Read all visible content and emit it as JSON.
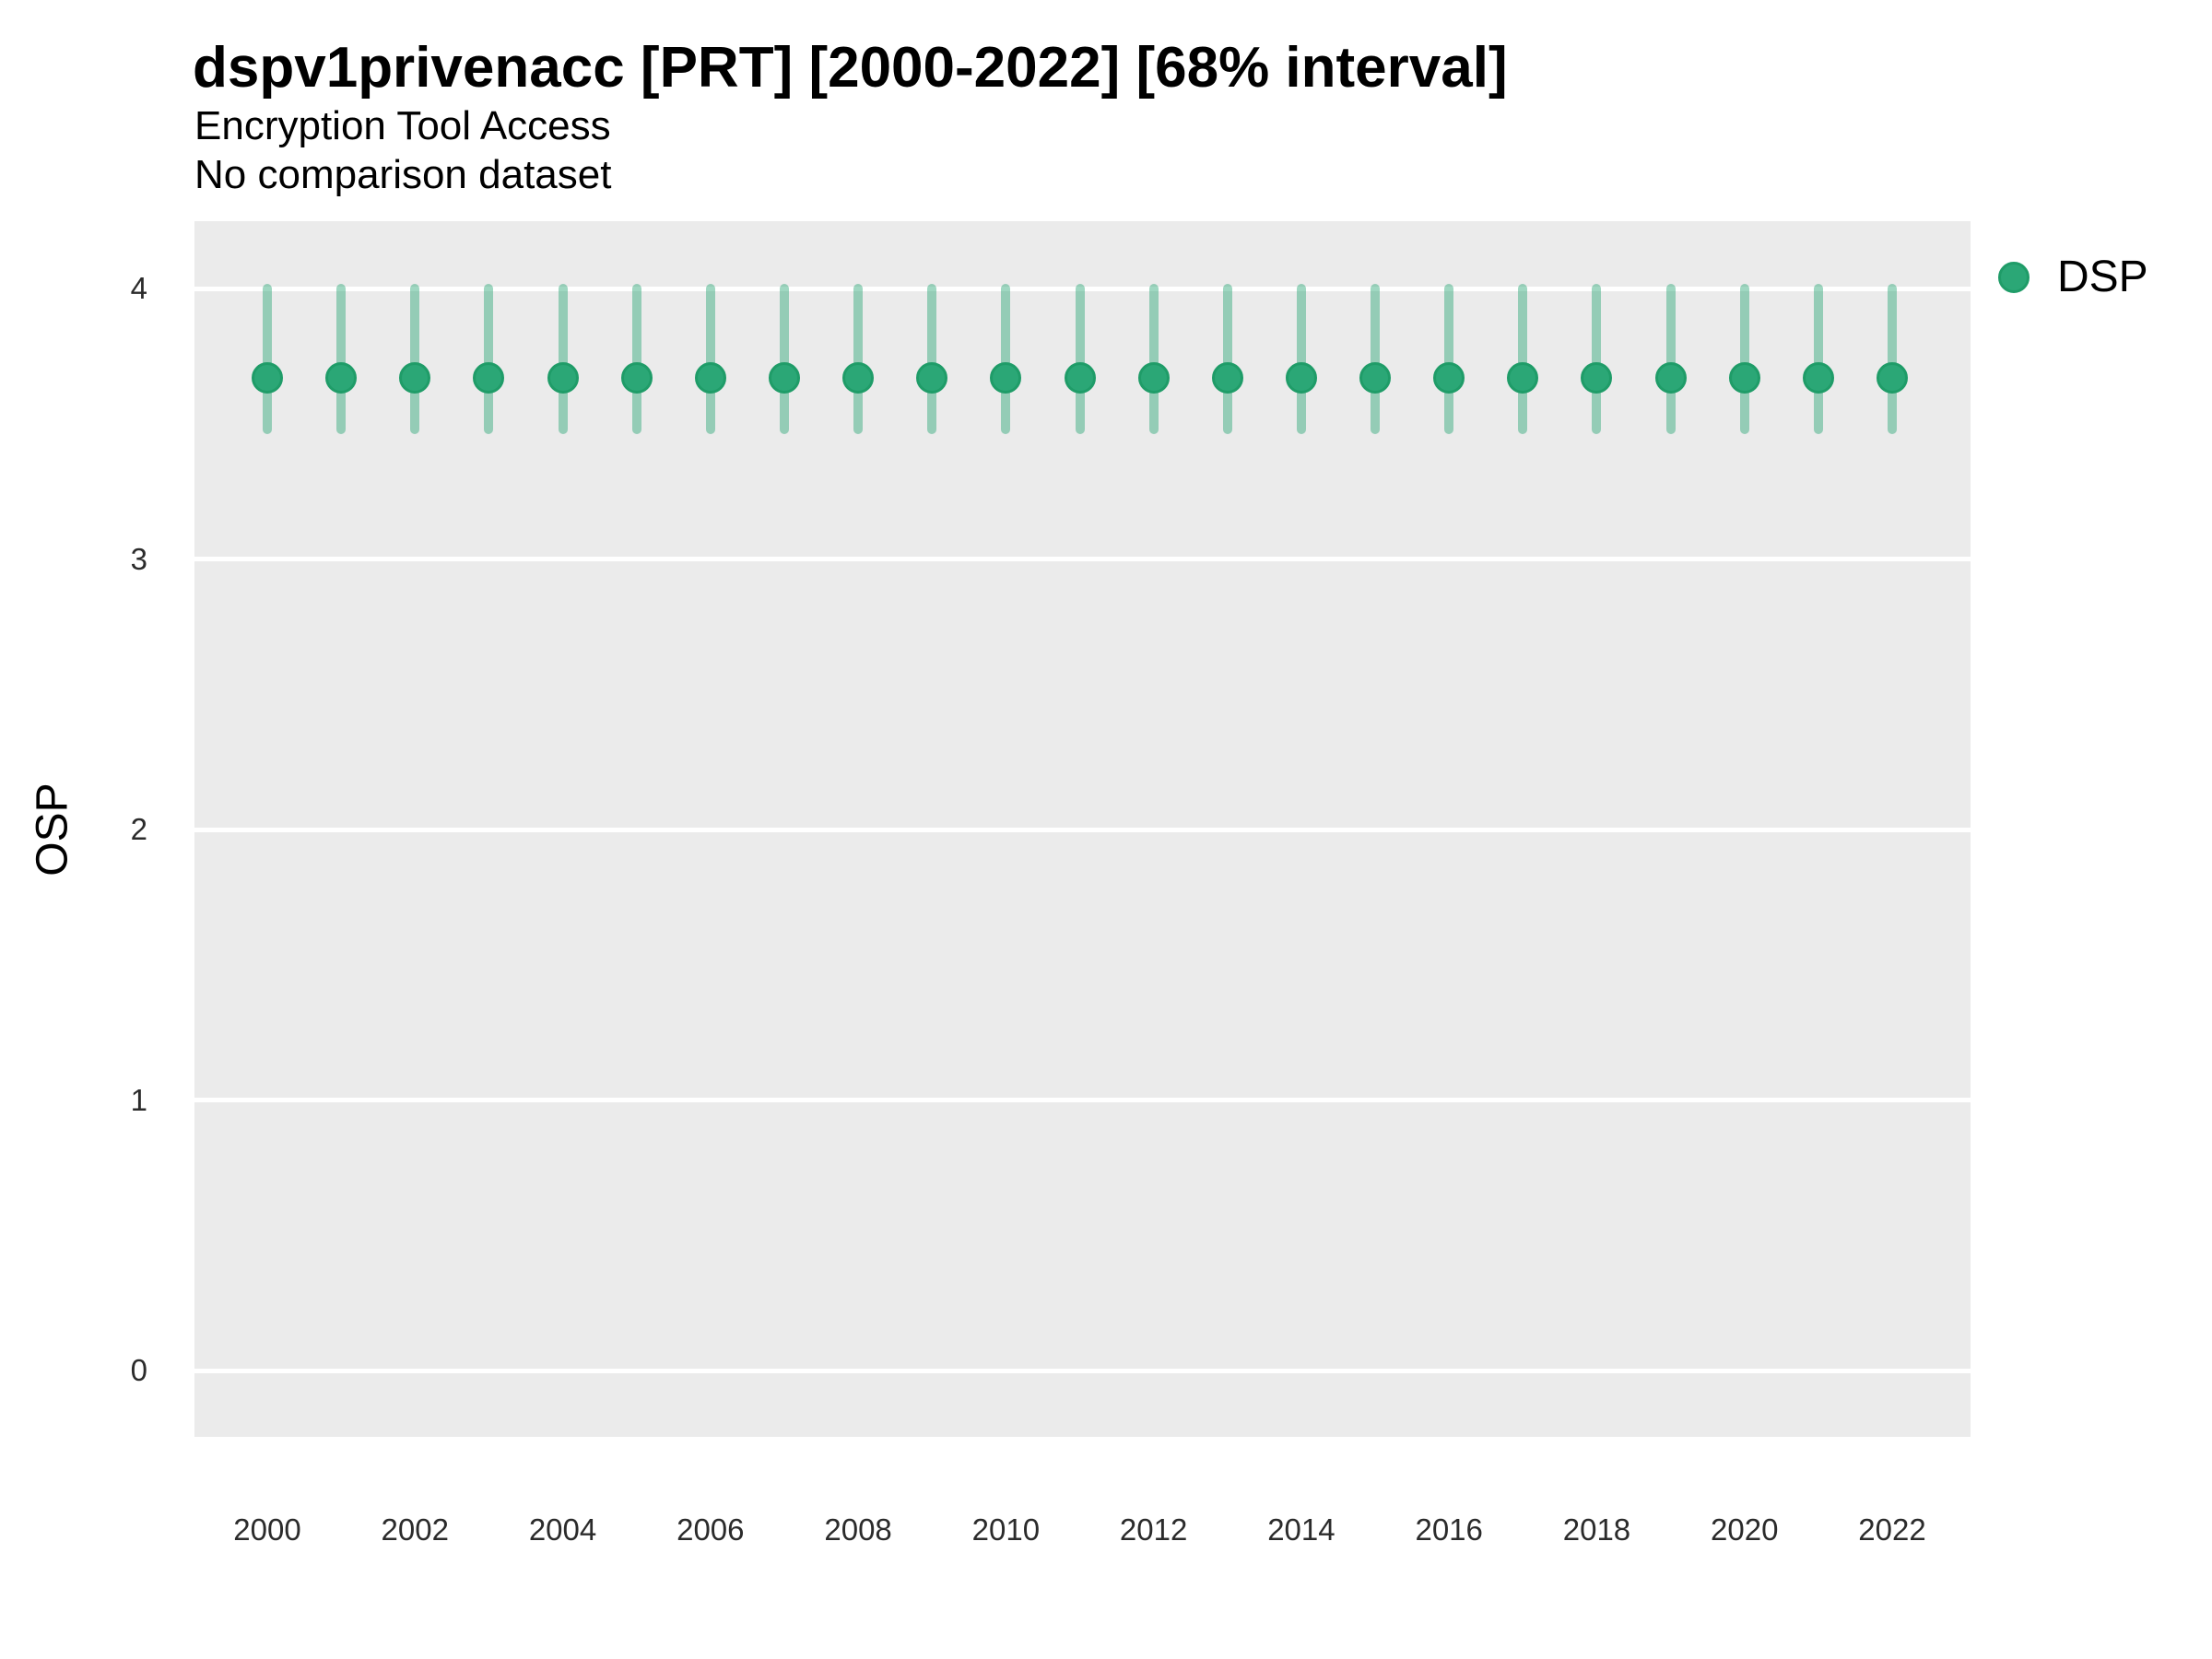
{
  "header": {
    "title": "dspv1privenacc [PRT] [2000-2022] [68% interval]",
    "subtitle": "Encryption Tool Access",
    "note": "No comparison dataset"
  },
  "legend": {
    "items": [
      {
        "label": "DSP",
        "marker": "circle-icon",
        "color": "#2BA776"
      }
    ],
    "position": "right"
  },
  "axes": {
    "y": {
      "label": "OSP",
      "ticks": [
        0,
        1,
        2,
        3,
        4
      ]
    },
    "x": {
      "label": "",
      "ticks": [
        2000,
        2002,
        2004,
        2006,
        2008,
        2010,
        2012,
        2014,
        2016,
        2018,
        2020,
        2022
      ]
    }
  },
  "chart_data": {
    "type": "scatter",
    "subtype": "point-interval",
    "title": "dspv1privenacc [PRT] [2000-2022] [68% interval]",
    "subtitle": "Encryption Tool Access",
    "note": "No comparison dataset",
    "interval": "68%",
    "xlabel": "",
    "ylabel": "OSP",
    "xlim": [
      1998.9,
      2023.1
    ],
    "ylim": [
      -0.25,
      4.25
    ],
    "grid": "major-horizontal-only",
    "legend_position": "right",
    "x": [
      2000,
      2001,
      2002,
      2003,
      2004,
      2005,
      2006,
      2007,
      2008,
      2009,
      2010,
      2011,
      2012,
      2013,
      2014,
      2015,
      2016,
      2017,
      2018,
      2019,
      2020,
      2021,
      2022
    ],
    "series": [
      {
        "name": "DSP",
        "estimate": [
          3.67,
          3.67,
          3.67,
          3.67,
          3.67,
          3.67,
          3.67,
          3.67,
          3.67,
          3.67,
          3.67,
          3.67,
          3.67,
          3.67,
          3.67,
          3.67,
          3.67,
          3.67,
          3.67,
          3.67,
          3.67,
          3.67,
          3.67
        ],
        "lower_68": [
          3.48,
          3.48,
          3.48,
          3.48,
          3.48,
          3.48,
          3.48,
          3.48,
          3.48,
          3.48,
          3.48,
          3.48,
          3.48,
          3.48,
          3.48,
          3.48,
          3.48,
          3.48,
          3.48,
          3.48,
          3.48,
          3.48,
          3.48
        ],
        "upper_68": [
          4.0,
          4.0,
          4.0,
          4.0,
          4.0,
          4.0,
          4.0,
          4.0,
          4.0,
          4.0,
          4.0,
          4.0,
          4.0,
          4.0,
          4.0,
          4.0,
          4.0,
          4.0,
          4.0,
          4.0,
          4.0,
          4.0,
          4.0
        ]
      }
    ],
    "colors": {
      "point_fill": "#2BA776",
      "point_border": "#1F9C68",
      "interval_bar": "rgba(43,167,118,0.45)",
      "panel_background": "#EBEBEB",
      "gridline": "#FFFFFF"
    }
  }
}
